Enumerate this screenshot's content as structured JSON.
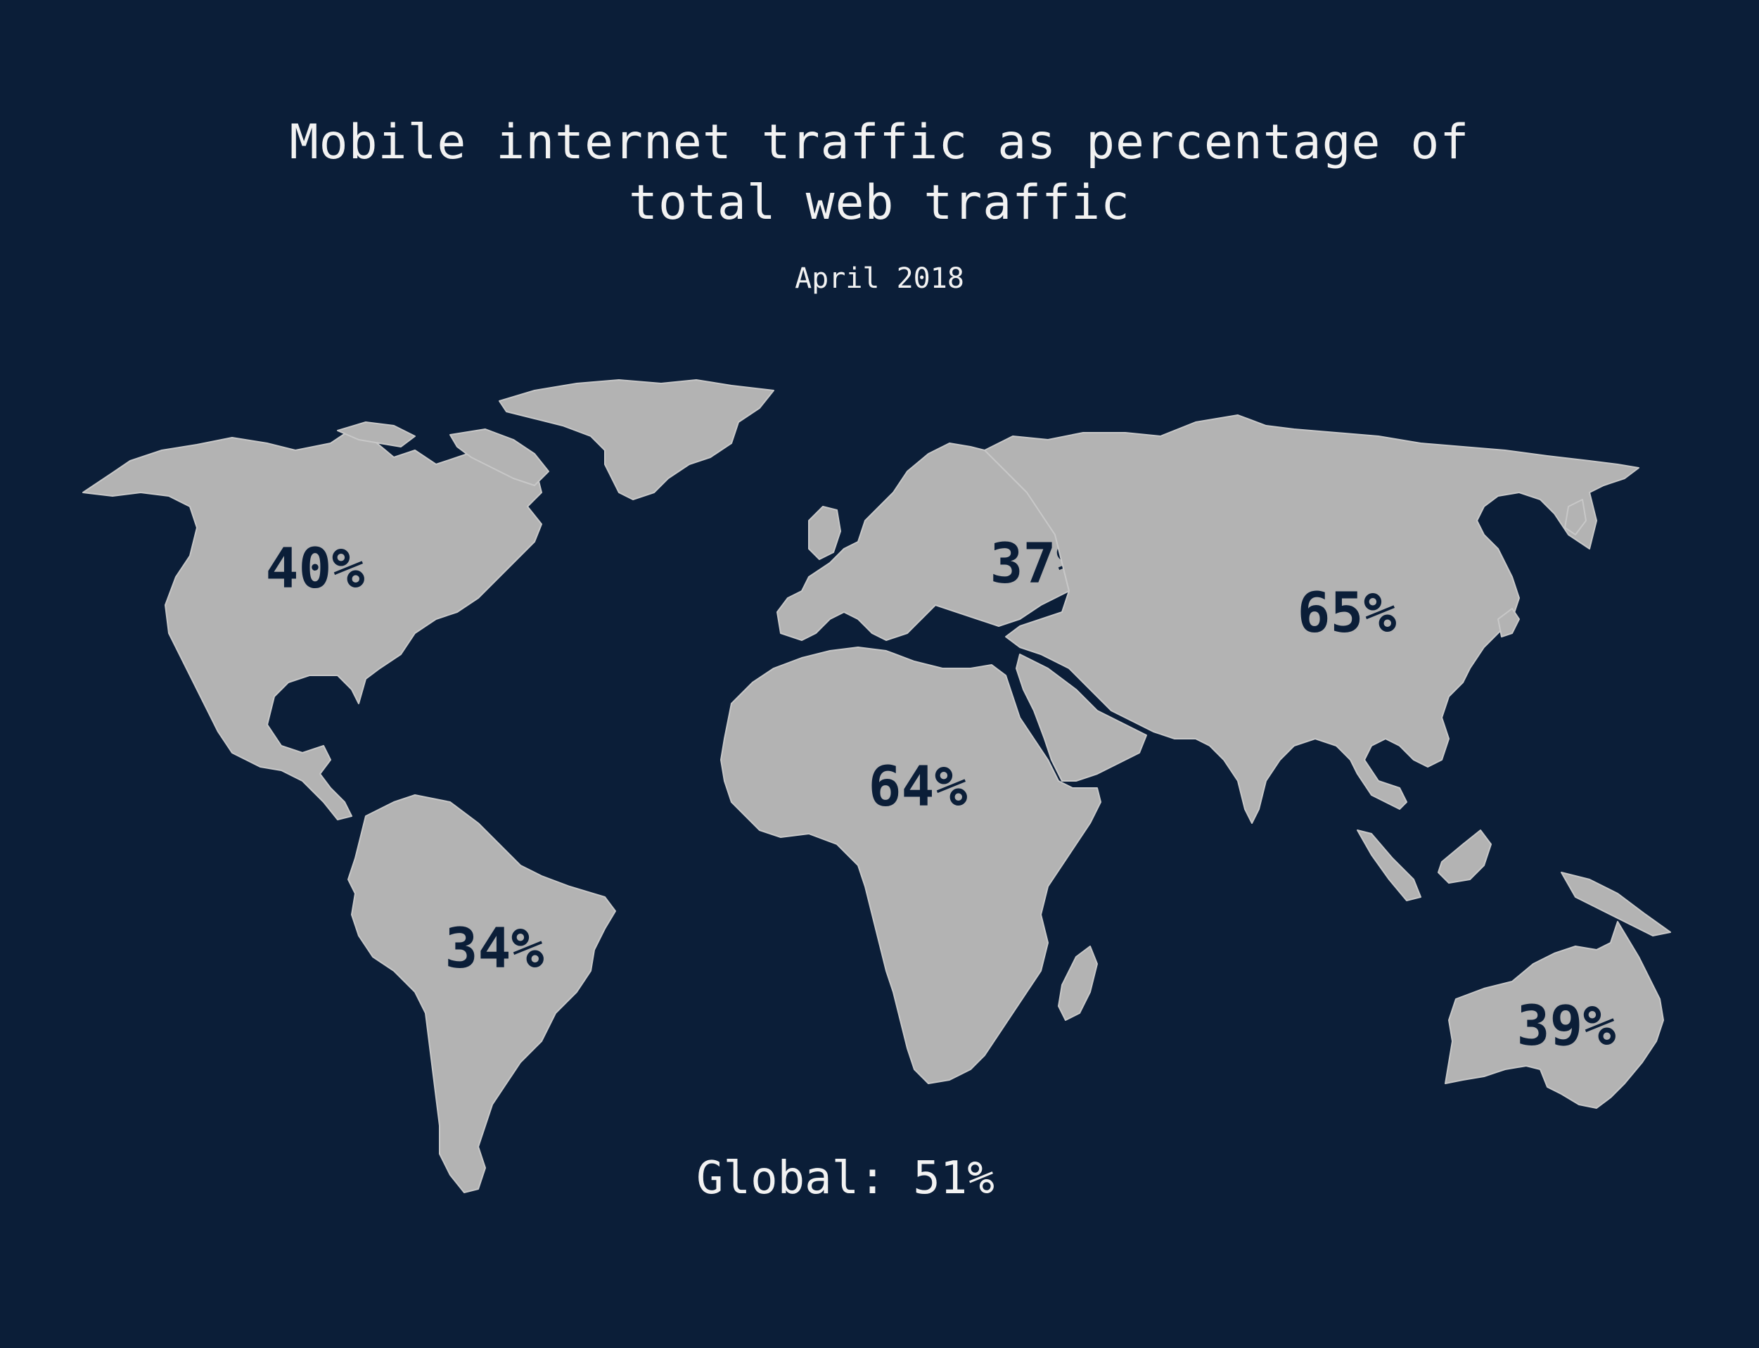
{
  "title": "Mobile internet traffic as percentage of\ntotal web traffic",
  "subtitle": "April 2018",
  "global": "Global: 51%",
  "colors": {
    "background": "#0b1e38",
    "land": "#b3b3b3",
    "label": "#0b1e38",
    "text": "#f2f2f2"
  },
  "regions": [
    {
      "name": "North America",
      "label": "40%"
    },
    {
      "name": "South America",
      "label": "34%"
    },
    {
      "name": "Europe",
      "label": "37%"
    },
    {
      "name": "Africa",
      "label": "64%"
    },
    {
      "name": "Asia",
      "label": "65%"
    },
    {
      "name": "Oceania",
      "label": "39%"
    }
  ]
}
